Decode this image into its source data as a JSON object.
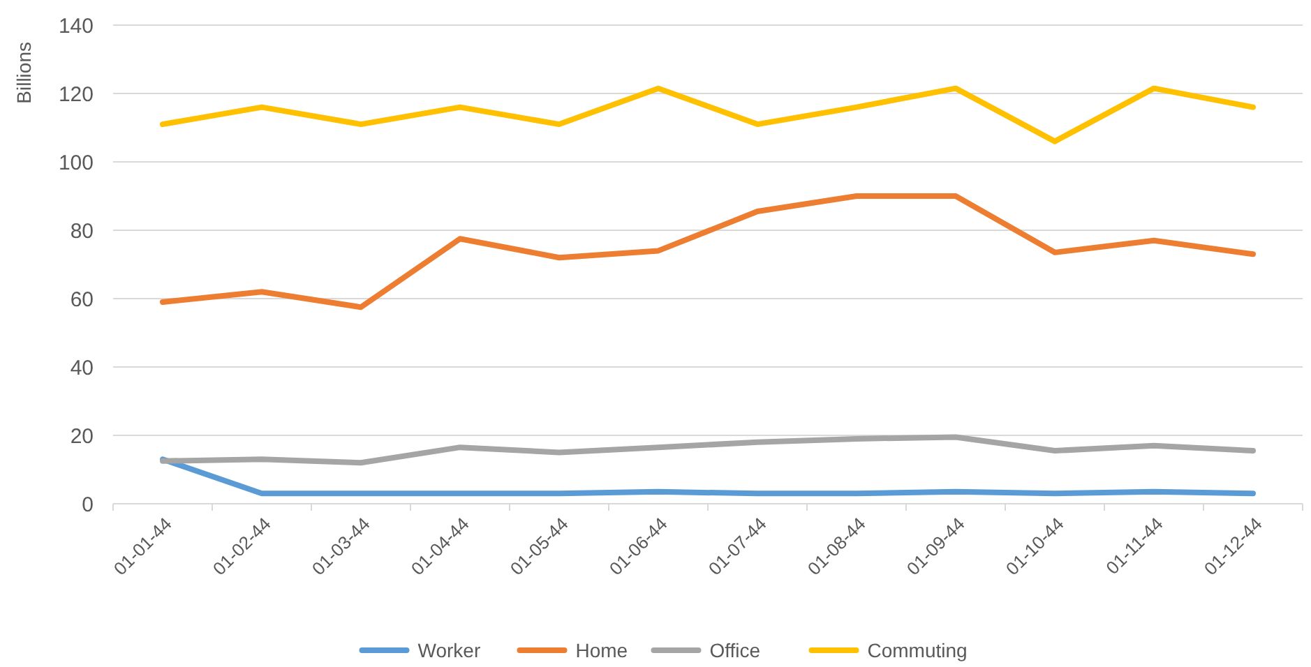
{
  "chart_data": {
    "type": "line",
    "ylabel": "Billions",
    "categories": [
      "01-01-44",
      "01-02-44",
      "01-03-44",
      "01-04-44",
      "01-05-44",
      "01-06-44",
      "01-07-44",
      "01-08-44",
      "01-09-44",
      "01-10-44",
      "01-11-44",
      "01-12-44"
    ],
    "series": [
      {
        "name": "Worker",
        "color": "#5b9bd5",
        "values": [
          13,
          3,
          3,
          3,
          3,
          3.5,
          3,
          3,
          3.5,
          3,
          3.5,
          3
        ]
      },
      {
        "name": "Home",
        "color": "#ed7d31",
        "values": [
          59,
          62,
          57.5,
          77.5,
          72,
          74,
          85.5,
          90,
          90,
          73.5,
          77,
          73
        ]
      },
      {
        "name": "Office",
        "color": "#a5a5a5",
        "values": [
          12.5,
          13,
          12,
          16.5,
          15,
          16.5,
          18,
          19,
          19.5,
          15.5,
          17,
          15.5
        ]
      },
      {
        "name": "Commuting",
        "color": "#ffc000",
        "values": [
          111,
          116,
          111,
          116,
          111,
          121.5,
          111,
          116,
          121.5,
          106,
          121.5,
          116
        ]
      }
    ],
    "ylim": [
      0,
      140
    ],
    "yticks": [
      0,
      20,
      40,
      60,
      80,
      100,
      120,
      140
    ],
    "grid": "y",
    "legend": "bottom",
    "marker": "none",
    "line_style": "solid"
  }
}
